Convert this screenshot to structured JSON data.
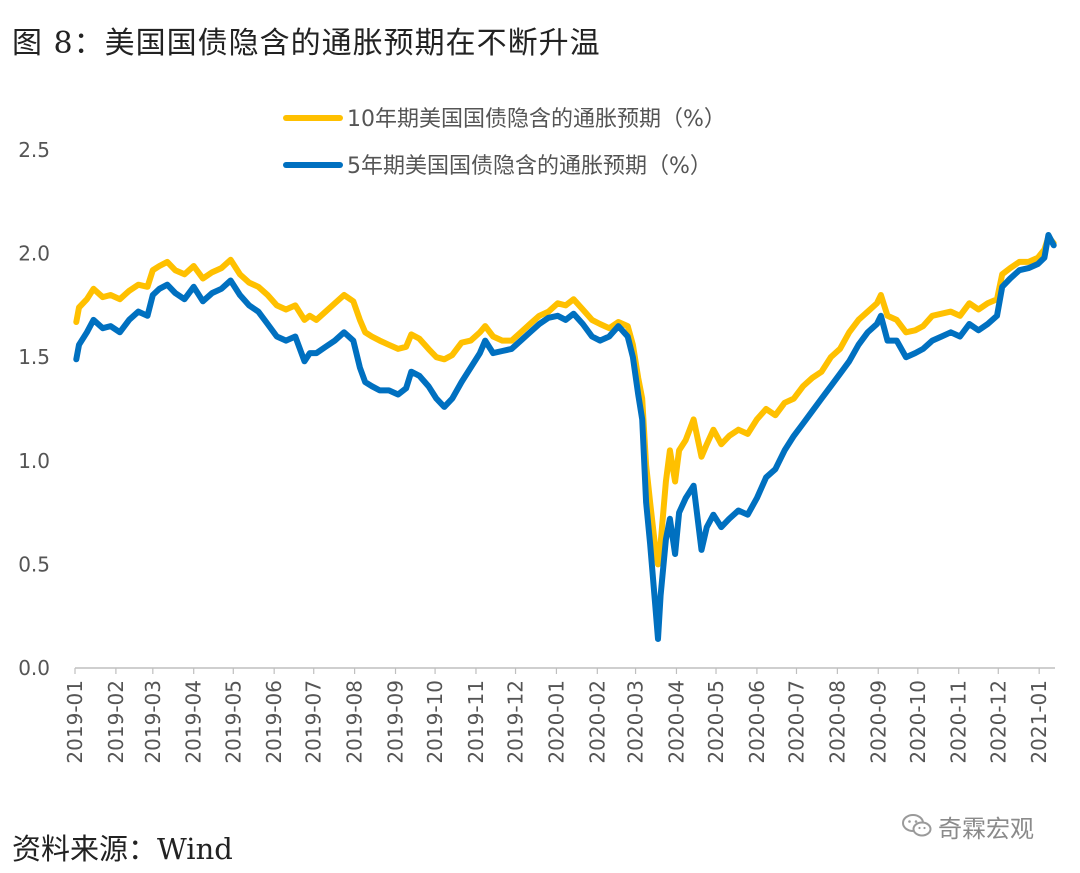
{
  "header": {
    "title": "图 8：美国国债隐含的通胀预期在不断升温"
  },
  "footer": {
    "source": "资料来源：Wind",
    "watermark": "奇霖宏观"
  },
  "colors": {
    "series_10y": "#FFC000",
    "series_5y": "#0070C0",
    "axis": "#bfbfbf",
    "text": "#595959"
  },
  "icons": {
    "watermark_icon": "wechat-icon"
  },
  "chart_data": {
    "type": "line",
    "title": "",
    "xlabel": "",
    "ylabel": "",
    "ylim": [
      0,
      2.5
    ],
    "yticks": [
      "0.0",
      "0.5",
      "1.0",
      "1.5",
      "2.0",
      "2.5"
    ],
    "grid": false,
    "legend": "top-center",
    "x_ticks": [
      "2019-01",
      "2019-02",
      "2019-03",
      "2019-04",
      "2019-05",
      "2019-06",
      "2019-07",
      "2019-08",
      "2019-09",
      "2019-10",
      "2019-11",
      "2019-12",
      "2020-01",
      "2020-02",
      "2020-03",
      "2020-04",
      "2020-05",
      "2020-06",
      "2020-07",
      "2020-08",
      "2020-09",
      "2020-10",
      "2020-11",
      "2020-12",
      "2021-01"
    ],
    "series": [
      {
        "name": "10年期美国国债隐含的通胀预期（%）",
        "color": "#FFC000",
        "points": [
          [
            "2019-01-02",
            1.67
          ],
          [
            "2019-01-04",
            1.74
          ],
          [
            "2019-01-10",
            1.78
          ],
          [
            "2019-01-15",
            1.83
          ],
          [
            "2019-01-22",
            1.79
          ],
          [
            "2019-01-28",
            1.8
          ],
          [
            "2019-02-04",
            1.78
          ],
          [
            "2019-02-11",
            1.82
          ],
          [
            "2019-02-18",
            1.85
          ],
          [
            "2019-02-25",
            1.84
          ],
          [
            "2019-03-01",
            1.92
          ],
          [
            "2019-03-06",
            1.94
          ],
          [
            "2019-03-12",
            1.96
          ],
          [
            "2019-03-18",
            1.92
          ],
          [
            "2019-03-25",
            1.9
          ],
          [
            "2019-04-01",
            1.94
          ],
          [
            "2019-04-08",
            1.88
          ],
          [
            "2019-04-15",
            1.91
          ],
          [
            "2019-04-22",
            1.93
          ],
          [
            "2019-04-29",
            1.97
          ],
          [
            "2019-05-06",
            1.9
          ],
          [
            "2019-05-13",
            1.86
          ],
          [
            "2019-05-20",
            1.84
          ],
          [
            "2019-05-27",
            1.8
          ],
          [
            "2019-06-03",
            1.75
          ],
          [
            "2019-06-10",
            1.73
          ],
          [
            "2019-06-17",
            1.75
          ],
          [
            "2019-06-24",
            1.68
          ],
          [
            "2019-06-28",
            1.7
          ],
          [
            "2019-07-03",
            1.68
          ],
          [
            "2019-07-10",
            1.72
          ],
          [
            "2019-07-17",
            1.76
          ],
          [
            "2019-07-24",
            1.8
          ],
          [
            "2019-07-31",
            1.77
          ],
          [
            "2019-08-05",
            1.68
          ],
          [
            "2019-08-09",
            1.62
          ],
          [
            "2019-08-14",
            1.6
          ],
          [
            "2019-08-20",
            1.58
          ],
          [
            "2019-08-27",
            1.56
          ],
          [
            "2019-09-03",
            1.54
          ],
          [
            "2019-09-09",
            1.55
          ],
          [
            "2019-09-13",
            1.61
          ],
          [
            "2019-09-19",
            1.59
          ],
          [
            "2019-09-26",
            1.54
          ],
          [
            "2019-10-02",
            1.5
          ],
          [
            "2019-10-08",
            1.49
          ],
          [
            "2019-10-14",
            1.51
          ],
          [
            "2019-10-21",
            1.57
          ],
          [
            "2019-10-28",
            1.58
          ],
          [
            "2019-11-04",
            1.62
          ],
          [
            "2019-11-08",
            1.65
          ],
          [
            "2019-11-14",
            1.6
          ],
          [
            "2019-11-21",
            1.58
          ],
          [
            "2019-11-28",
            1.58
          ],
          [
            "2019-12-05",
            1.62
          ],
          [
            "2019-12-12",
            1.66
          ],
          [
            "2019-12-19",
            1.7
          ],
          [
            "2019-12-26",
            1.72
          ],
          [
            "2020-01-02",
            1.76
          ],
          [
            "2020-01-08",
            1.75
          ],
          [
            "2020-01-14",
            1.78
          ],
          [
            "2020-01-21",
            1.73
          ],
          [
            "2020-01-28",
            1.68
          ],
          [
            "2020-02-03",
            1.66
          ],
          [
            "2020-02-10",
            1.64
          ],
          [
            "2020-02-17",
            1.67
          ],
          [
            "2020-02-24",
            1.65
          ],
          [
            "2020-02-28",
            1.56
          ],
          [
            "2020-03-03",
            1.4
          ],
          [
            "2020-03-06",
            1.3
          ],
          [
            "2020-03-09",
            0.98
          ],
          [
            "2020-03-12",
            0.8
          ],
          [
            "2020-03-16",
            0.58
          ],
          [
            "2020-03-18",
            0.5
          ],
          [
            "2020-03-20",
            0.6
          ],
          [
            "2020-03-24",
            0.9
          ],
          [
            "2020-03-27",
            1.05
          ],
          [
            "2020-03-31",
            0.9
          ],
          [
            "2020-04-03",
            1.05
          ],
          [
            "2020-04-08",
            1.1
          ],
          [
            "2020-04-14",
            1.2
          ],
          [
            "2020-04-20",
            1.02
          ],
          [
            "2020-04-24",
            1.08
          ],
          [
            "2020-04-29",
            1.15
          ],
          [
            "2020-05-05",
            1.08
          ],
          [
            "2020-05-11",
            1.12
          ],
          [
            "2020-05-18",
            1.15
          ],
          [
            "2020-05-25",
            1.13
          ],
          [
            "2020-06-01",
            1.2
          ],
          [
            "2020-06-08",
            1.25
          ],
          [
            "2020-06-15",
            1.22
          ],
          [
            "2020-06-22",
            1.28
          ],
          [
            "2020-06-29",
            1.3
          ],
          [
            "2020-07-06",
            1.36
          ],
          [
            "2020-07-13",
            1.4
          ],
          [
            "2020-07-20",
            1.43
          ],
          [
            "2020-07-27",
            1.5
          ],
          [
            "2020-08-03",
            1.54
          ],
          [
            "2020-08-10",
            1.62
          ],
          [
            "2020-08-17",
            1.68
          ],
          [
            "2020-08-24",
            1.72
          ],
          [
            "2020-08-31",
            1.76
          ],
          [
            "2020-09-03",
            1.8
          ],
          [
            "2020-09-08",
            1.7
          ],
          [
            "2020-09-15",
            1.68
          ],
          [
            "2020-09-22",
            1.62
          ],
          [
            "2020-09-29",
            1.63
          ],
          [
            "2020-10-05",
            1.65
          ],
          [
            "2020-10-12",
            1.7
          ],
          [
            "2020-10-19",
            1.71
          ],
          [
            "2020-10-26",
            1.72
          ],
          [
            "2020-11-02",
            1.7
          ],
          [
            "2020-11-09",
            1.76
          ],
          [
            "2020-11-16",
            1.73
          ],
          [
            "2020-11-23",
            1.76
          ],
          [
            "2020-11-30",
            1.78
          ],
          [
            "2020-12-04",
            1.9
          ],
          [
            "2020-12-10",
            1.93
          ],
          [
            "2020-12-17",
            1.96
          ],
          [
            "2020-12-24",
            1.96
          ],
          [
            "2020-12-31",
            1.98
          ],
          [
            "2021-01-05",
            2.02
          ],
          [
            "2021-01-08",
            2.08
          ],
          [
            "2021-01-12",
            2.05
          ]
        ]
      },
      {
        "name": "5年期美国国债隐含的通胀预期（%）",
        "color": "#0070C0",
        "points": [
          [
            "2019-01-02",
            1.49
          ],
          [
            "2019-01-04",
            1.56
          ],
          [
            "2019-01-10",
            1.62
          ],
          [
            "2019-01-15",
            1.68
          ],
          [
            "2019-01-22",
            1.64
          ],
          [
            "2019-01-28",
            1.65
          ],
          [
            "2019-02-04",
            1.62
          ],
          [
            "2019-02-11",
            1.68
          ],
          [
            "2019-02-18",
            1.72
          ],
          [
            "2019-02-25",
            1.7
          ],
          [
            "2019-03-01",
            1.8
          ],
          [
            "2019-03-06",
            1.83
          ],
          [
            "2019-03-12",
            1.85
          ],
          [
            "2019-03-18",
            1.81
          ],
          [
            "2019-03-25",
            1.78
          ],
          [
            "2019-04-01",
            1.84
          ],
          [
            "2019-04-08",
            1.77
          ],
          [
            "2019-04-15",
            1.81
          ],
          [
            "2019-04-22",
            1.83
          ],
          [
            "2019-04-29",
            1.87
          ],
          [
            "2019-05-06",
            1.8
          ],
          [
            "2019-05-13",
            1.75
          ],
          [
            "2019-05-20",
            1.72
          ],
          [
            "2019-05-27",
            1.66
          ],
          [
            "2019-06-03",
            1.6
          ],
          [
            "2019-06-10",
            1.58
          ],
          [
            "2019-06-17",
            1.6
          ],
          [
            "2019-06-24",
            1.48
          ],
          [
            "2019-06-28",
            1.52
          ],
          [
            "2019-07-03",
            1.52
          ],
          [
            "2019-07-10",
            1.55
          ],
          [
            "2019-07-17",
            1.58
          ],
          [
            "2019-07-24",
            1.62
          ],
          [
            "2019-07-31",
            1.58
          ],
          [
            "2019-08-05",
            1.45
          ],
          [
            "2019-08-09",
            1.38
          ],
          [
            "2019-08-14",
            1.36
          ],
          [
            "2019-08-20",
            1.34
          ],
          [
            "2019-08-27",
            1.34
          ],
          [
            "2019-09-03",
            1.32
          ],
          [
            "2019-09-09",
            1.35
          ],
          [
            "2019-09-13",
            1.43
          ],
          [
            "2019-09-19",
            1.41
          ],
          [
            "2019-09-26",
            1.36
          ],
          [
            "2019-10-02",
            1.3
          ],
          [
            "2019-10-08",
            1.26
          ],
          [
            "2019-10-14",
            1.3
          ],
          [
            "2019-10-21",
            1.38
          ],
          [
            "2019-10-28",
            1.45
          ],
          [
            "2019-11-04",
            1.52
          ],
          [
            "2019-11-08",
            1.58
          ],
          [
            "2019-11-14",
            1.52
          ],
          [
            "2019-11-21",
            1.53
          ],
          [
            "2019-11-28",
            1.54
          ],
          [
            "2019-12-05",
            1.58
          ],
          [
            "2019-12-12",
            1.62
          ],
          [
            "2019-12-19",
            1.66
          ],
          [
            "2019-12-26",
            1.69
          ],
          [
            "2020-01-02",
            1.7
          ],
          [
            "2020-01-08",
            1.68
          ],
          [
            "2020-01-14",
            1.71
          ],
          [
            "2020-01-21",
            1.66
          ],
          [
            "2020-01-28",
            1.6
          ],
          [
            "2020-02-03",
            1.58
          ],
          [
            "2020-02-10",
            1.6
          ],
          [
            "2020-02-17",
            1.65
          ],
          [
            "2020-02-24",
            1.6
          ],
          [
            "2020-02-28",
            1.5
          ],
          [
            "2020-03-03",
            1.32
          ],
          [
            "2020-03-06",
            1.2
          ],
          [
            "2020-03-09",
            0.8
          ],
          [
            "2020-03-12",
            0.6
          ],
          [
            "2020-03-16",
            0.3
          ],
          [
            "2020-03-18",
            0.14
          ],
          [
            "2020-03-20",
            0.35
          ],
          [
            "2020-03-24",
            0.62
          ],
          [
            "2020-03-27",
            0.72
          ],
          [
            "2020-03-31",
            0.55
          ],
          [
            "2020-04-03",
            0.75
          ],
          [
            "2020-04-08",
            0.82
          ],
          [
            "2020-04-14",
            0.88
          ],
          [
            "2020-04-20",
            0.57
          ],
          [
            "2020-04-24",
            0.68
          ],
          [
            "2020-04-29",
            0.74
          ],
          [
            "2020-05-05",
            0.68
          ],
          [
            "2020-05-11",
            0.72
          ],
          [
            "2020-05-18",
            0.76
          ],
          [
            "2020-05-25",
            0.74
          ],
          [
            "2020-06-01",
            0.82
          ],
          [
            "2020-06-08",
            0.92
          ],
          [
            "2020-06-15",
            0.96
          ],
          [
            "2020-06-22",
            1.05
          ],
          [
            "2020-06-29",
            1.12
          ],
          [
            "2020-07-06",
            1.18
          ],
          [
            "2020-07-13",
            1.24
          ],
          [
            "2020-07-20",
            1.3
          ],
          [
            "2020-07-27",
            1.36
          ],
          [
            "2020-08-03",
            1.42
          ],
          [
            "2020-08-10",
            1.48
          ],
          [
            "2020-08-17",
            1.56
          ],
          [
            "2020-08-24",
            1.62
          ],
          [
            "2020-08-31",
            1.66
          ],
          [
            "2020-09-03",
            1.7
          ],
          [
            "2020-09-08",
            1.58
          ],
          [
            "2020-09-15",
            1.58
          ],
          [
            "2020-09-22",
            1.5
          ],
          [
            "2020-09-29",
            1.52
          ],
          [
            "2020-10-05",
            1.54
          ],
          [
            "2020-10-12",
            1.58
          ],
          [
            "2020-10-19",
            1.6
          ],
          [
            "2020-10-26",
            1.62
          ],
          [
            "2020-11-02",
            1.6
          ],
          [
            "2020-11-09",
            1.66
          ],
          [
            "2020-11-16",
            1.63
          ],
          [
            "2020-11-23",
            1.66
          ],
          [
            "2020-11-30",
            1.7
          ],
          [
            "2020-12-04",
            1.84
          ],
          [
            "2020-12-10",
            1.88
          ],
          [
            "2020-12-17",
            1.92
          ],
          [
            "2020-12-24",
            1.93
          ],
          [
            "2020-12-31",
            1.95
          ],
          [
            "2021-01-05",
            1.98
          ],
          [
            "2021-01-08",
            2.09
          ],
          [
            "2021-01-12",
            2.04
          ]
        ]
      }
    ]
  }
}
